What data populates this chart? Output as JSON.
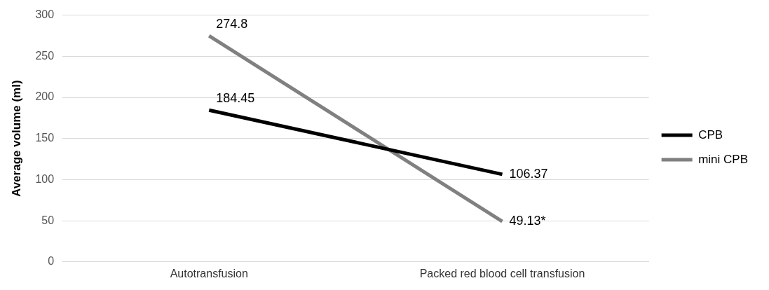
{
  "chart_data": {
    "type": "line",
    "ylabel": "Average volume (ml)",
    "categories": [
      "Autotransfusion",
      "Packed red blood cell transfusion"
    ],
    "series": [
      {
        "name": "CPB",
        "color": "#000000",
        "values": [
          184.45,
          106.37
        ],
        "value_labels": [
          "184.45",
          "106.37"
        ]
      },
      {
        "name": "mini CPB",
        "color": "#808080",
        "values": [
          274.8,
          49.13
        ],
        "value_labels": [
          "274.8",
          "49.13*"
        ]
      }
    ],
    "ylim": [
      0,
      300
    ],
    "yticks": [
      0,
      50,
      100,
      150,
      200,
      250,
      300
    ],
    "grid": "y",
    "legend": "right",
    "marker": "none",
    "line_style": "solid"
  }
}
